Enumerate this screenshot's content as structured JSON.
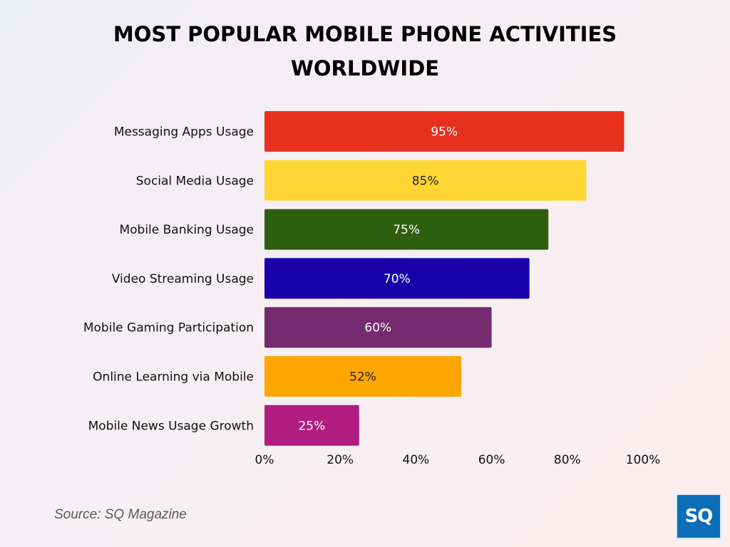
{
  "header": {
    "title_line_1": "MOST POPULAR MOBILE PHONE ACTIVITIES",
    "title_line_2": "WORLDWIDE"
  },
  "footer": {
    "source": "Source: SQ Magazine",
    "logo_text": "SQ"
  },
  "chart_data": {
    "type": "bar",
    "orientation": "horizontal",
    "title": "MOST POPULAR MOBILE PHONE ACTIVITIES WORLDWIDE",
    "categories": [
      "Messaging Apps Usage",
      "Social Media Usage",
      "Mobile Banking Usage",
      "Video Streaming Usage",
      "Mobile Gaming Participation",
      "Online Learning via Mobile",
      "Mobile News Usage Growth"
    ],
    "values": [
      95,
      85,
      75,
      70,
      60,
      52,
      25
    ],
    "value_labels": [
      "95%",
      "85%",
      "75%",
      "70%",
      "60%",
      "52%",
      "25%"
    ],
    "colors": [
      "#e8301f",
      "#ffd633",
      "#2e5f10",
      "#1a00aa",
      "#732a6e",
      "#ffa500",
      "#b01c80"
    ],
    "label_colors": [
      "#ffffff",
      "#222222",
      "#ffffff",
      "#ffffff",
      "#ffffff",
      "#222222",
      "#ffffff"
    ],
    "xlim": [
      0,
      100
    ],
    "x_ticks": [
      0,
      20,
      40,
      60,
      80,
      100
    ],
    "x_tick_labels": [
      "0%",
      "20%",
      "40%",
      "60%",
      "80%",
      "100%"
    ],
    "grid": false,
    "legend": "none"
  }
}
